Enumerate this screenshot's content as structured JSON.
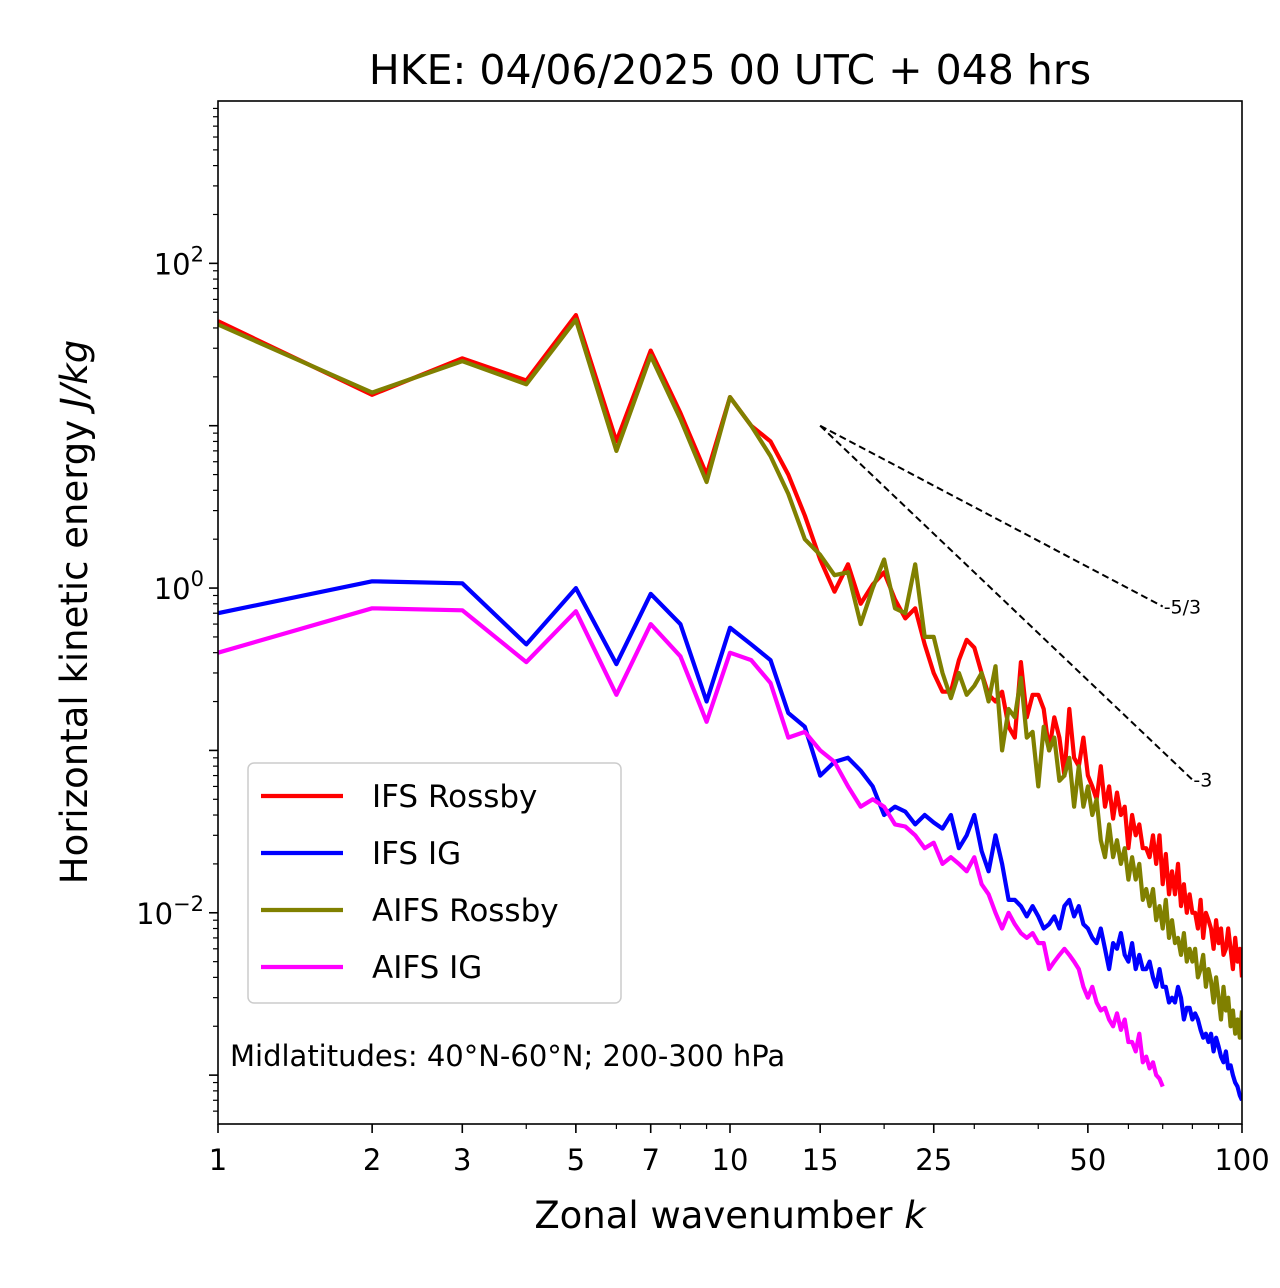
{
  "chart_data": {
    "type": "line",
    "title": "HKE: 04/06/2025 00 UTC + 048 hrs",
    "xlabel_main": "Zonal wavenumber ",
    "xlabel_var": "k",
    "ylabel_main": "Horizontal kinetic energy ",
    "ylabel_unit": "J/kg",
    "xscale": "log",
    "yscale": "log",
    "xlim": [
      1,
      100
    ],
    "ylim": [
      0.0005,
      1000
    ],
    "x_ticks": [
      1,
      2,
      3,
      5,
      7,
      10,
      15,
      25,
      50,
      100
    ],
    "x_tick_labels": [
      "1",
      "2",
      "3",
      "5",
      "7",
      "10",
      "15",
      "25",
      "50",
      "100"
    ],
    "y_ticks": [
      {
        "value": 100,
        "base": "10",
        "exp": "2"
      },
      {
        "value": 1,
        "base": "10",
        "exp": "0"
      },
      {
        "value": 0.01,
        "base": "10",
        "exp": "−2"
      }
    ],
    "annotation": "Midlatitudes: 40°N-60°N; 200-300 hPa",
    "legend_position": "lower-left",
    "grid": false,
    "reference_slopes": [
      {
        "label": "-5/3",
        "x": [
          15,
          70
        ],
        "y": [
          10,
          0.77
        ]
      },
      {
        "label": "-3",
        "x": [
          15,
          80
        ],
        "y": [
          10,
          0.066
        ]
      }
    ],
    "series": [
      {
        "name": "IFS Rossby",
        "color": "#ff0000",
        "x": [
          1,
          2,
          3,
          4,
          5,
          6,
          7,
          8,
          9,
          10,
          11,
          12,
          13,
          14,
          15,
          16,
          17,
          18,
          19,
          20,
          21,
          22,
          23,
          24,
          25,
          26,
          27,
          28,
          29,
          30,
          31,
          32,
          33,
          34,
          35,
          36,
          37,
          38,
          39,
          40,
          41,
          42,
          43,
          44,
          45,
          46,
          47,
          48,
          49,
          50,
          51,
          52,
          53,
          54,
          55,
          56,
          57,
          58,
          59,
          60,
          61,
          62,
          63,
          64,
          65,
          66,
          67,
          68,
          69,
          70,
          71,
          72,
          73,
          74,
          75,
          76,
          77,
          78,
          79,
          80,
          81,
          82,
          83,
          84,
          85,
          86,
          87,
          88,
          89,
          90,
          91,
          92,
          93,
          94,
          95,
          96,
          97,
          98,
          99,
          100
        ],
        "y": [
          44,
          15.5,
          26,
          19,
          48,
          8,
          29,
          12,
          5,
          15,
          10,
          8,
          5,
          2.8,
          1.5,
          0.95,
          1.4,
          0.8,
          1.05,
          1.25,
          0.85,
          0.65,
          0.75,
          0.45,
          0.3,
          0.23,
          0.23,
          0.36,
          0.48,
          0.43,
          0.3,
          0.22,
          0.2,
          0.23,
          0.14,
          0.12,
          0.35,
          0.16,
          0.22,
          0.22,
          0.18,
          0.1,
          0.16,
          0.12,
          0.07,
          0.18,
          0.09,
          0.08,
          0.12,
          0.07,
          0.06,
          0.05,
          0.08,
          0.045,
          0.06,
          0.038,
          0.055,
          0.04,
          0.045,
          0.025,
          0.04,
          0.03,
          0.035,
          0.025,
          0.025,
          0.022,
          0.03,
          0.02,
          0.03,
          0.015,
          0.023,
          0.013,
          0.018,
          0.013,
          0.02,
          0.011,
          0.015,
          0.01,
          0.013,
          0.01,
          0.01,
          0.008,
          0.012,
          0.007,
          0.01,
          0.009,
          0.008,
          0.006,
          0.009,
          0.0065,
          0.008,
          0.0055,
          0.006,
          0.008,
          0.006,
          0.0045,
          0.007,
          0.005,
          0.006,
          0.004
        ]
      },
      {
        "name": "IFS IG",
        "color": "#0000ff",
        "x": [
          1,
          2,
          3,
          4,
          5,
          6,
          7,
          8,
          9,
          10,
          11,
          12,
          13,
          14,
          15,
          16,
          17,
          18,
          19,
          20,
          21,
          22,
          23,
          24,
          25,
          26,
          27,
          28,
          29,
          30,
          31,
          32,
          33,
          34,
          35,
          36,
          37,
          38,
          39,
          40,
          41,
          42,
          43,
          44,
          45,
          46,
          47,
          48,
          49,
          50,
          51,
          52,
          53,
          54,
          55,
          56,
          57,
          58,
          59,
          60,
          61,
          62,
          63,
          64,
          65,
          66,
          67,
          68,
          69,
          70,
          71,
          72,
          73,
          74,
          75,
          76,
          77,
          78,
          79,
          80,
          81,
          82,
          83,
          84,
          85,
          86,
          87,
          88,
          89,
          90,
          91,
          92,
          93,
          94,
          95,
          96,
          97,
          98,
          99,
          100
        ],
        "y": [
          0.7,
          1.1,
          1.07,
          0.45,
          1.0,
          0.34,
          0.92,
          0.6,
          0.2,
          0.57,
          0.45,
          0.36,
          0.17,
          0.14,
          0.07,
          0.085,
          0.09,
          0.075,
          0.06,
          0.04,
          0.045,
          0.042,
          0.035,
          0.04,
          0.036,
          0.033,
          0.04,
          0.025,
          0.03,
          0.04,
          0.024,
          0.018,
          0.03,
          0.02,
          0.012,
          0.012,
          0.011,
          0.0095,
          0.011,
          0.0095,
          0.008,
          0.0085,
          0.0095,
          0.008,
          0.011,
          0.012,
          0.0095,
          0.011,
          0.0085,
          0.008,
          0.007,
          0.0065,
          0.008,
          0.006,
          0.0045,
          0.0065,
          0.006,
          0.0075,
          0.0055,
          0.005,
          0.0065,
          0.0045,
          0.0055,
          0.0045,
          0.0045,
          0.005,
          0.004,
          0.0035,
          0.0045,
          0.0035,
          0.0035,
          0.0028,
          0.003,
          0.0028,
          0.0035,
          0.003,
          0.0022,
          0.0026,
          0.0026,
          0.0022,
          0.0024,
          0.0022,
          0.0019,
          0.0017,
          0.0018,
          0.0016,
          0.0018,
          0.0014,
          0.0017,
          0.0015,
          0.0013,
          0.0012,
          0.0014,
          0.0011,
          0.00115,
          0.001,
          0.0009,
          0.00085,
          0.00075,
          0.0007
        ]
      },
      {
        "name": "AIFS Rossby",
        "color": "#808000",
        "x": [
          1,
          2,
          3,
          4,
          5,
          6,
          7,
          8,
          9,
          10,
          11,
          12,
          13,
          14,
          15,
          16,
          17,
          18,
          19,
          20,
          21,
          22,
          23,
          24,
          25,
          26,
          27,
          28,
          29,
          30,
          31,
          32,
          33,
          34,
          35,
          36,
          37,
          38,
          39,
          40,
          41,
          42,
          43,
          44,
          45,
          46,
          47,
          48,
          49,
          50,
          51,
          52,
          53,
          54,
          55,
          56,
          57,
          58,
          59,
          60,
          61,
          62,
          63,
          64,
          65,
          66,
          67,
          68,
          69,
          70,
          71,
          72,
          73,
          74,
          75,
          76,
          77,
          78,
          79,
          80,
          81,
          82,
          83,
          84,
          85,
          86,
          87,
          88,
          89,
          90,
          91,
          92,
          93,
          94,
          95,
          96,
          97,
          98,
          99,
          100
        ],
        "y": [
          42,
          16,
          25,
          18,
          45,
          7,
          27,
          11,
          4.5,
          15,
          10,
          6.5,
          3.8,
          2.0,
          1.6,
          1.2,
          1.25,
          0.6,
          1.0,
          1.5,
          0.75,
          0.7,
          1.4,
          0.5,
          0.5,
          0.3,
          0.21,
          0.3,
          0.22,
          0.25,
          0.3,
          0.2,
          0.33,
          0.1,
          0.18,
          0.16,
          0.28,
          0.12,
          0.13,
          0.06,
          0.14,
          0.1,
          0.12,
          0.065,
          0.07,
          0.09,
          0.045,
          0.08,
          0.045,
          0.06,
          0.04,
          0.05,
          0.028,
          0.022,
          0.035,
          0.022,
          0.028,
          0.02,
          0.025,
          0.016,
          0.022,
          0.016,
          0.02,
          0.012,
          0.014,
          0.011,
          0.014,
          0.009,
          0.011,
          0.008,
          0.012,
          0.007,
          0.009,
          0.0065,
          0.007,
          0.0055,
          0.0075,
          0.005,
          0.006,
          0.005,
          0.006,
          0.004,
          0.0045,
          0.0055,
          0.0035,
          0.0045,
          0.0038,
          0.0028,
          0.004,
          0.003,
          0.0022,
          0.0035,
          0.0025,
          0.003,
          0.002,
          0.0025,
          0.0018,
          0.0022,
          0.0017,
          0.0025
        ]
      },
      {
        "name": "AIFS IG",
        "color": "#ff00ff",
        "x": [
          1,
          2,
          3,
          4,
          5,
          6,
          7,
          8,
          9,
          10,
          11,
          12,
          13,
          14,
          15,
          16,
          17,
          18,
          19,
          20,
          21,
          22,
          23,
          24,
          25,
          26,
          27,
          28,
          29,
          30,
          31,
          32,
          33,
          34,
          35,
          36,
          37,
          38,
          39,
          40,
          41,
          42,
          43,
          44,
          45,
          46,
          47,
          48,
          49,
          50,
          51,
          52,
          53,
          54,
          55,
          56,
          57,
          58,
          59,
          60,
          61,
          62,
          63,
          64,
          65,
          66,
          67,
          68,
          69,
          70
        ],
        "y": [
          0.4,
          0.75,
          0.73,
          0.35,
          0.72,
          0.22,
          0.6,
          0.38,
          0.15,
          0.4,
          0.36,
          0.26,
          0.12,
          0.13,
          0.1,
          0.085,
          0.06,
          0.045,
          0.05,
          0.045,
          0.035,
          0.034,
          0.03,
          0.025,
          0.027,
          0.02,
          0.022,
          0.02,
          0.018,
          0.022,
          0.015,
          0.013,
          0.01,
          0.008,
          0.01,
          0.0085,
          0.0075,
          0.007,
          0.0075,
          0.0065,
          0.0065,
          0.0045,
          0.005,
          0.0055,
          0.006,
          0.0055,
          0.005,
          0.0045,
          0.0035,
          0.003,
          0.0035,
          0.0028,
          0.0025,
          0.0026,
          0.0022,
          0.002,
          0.0024,
          0.0019,
          0.0022,
          0.0016,
          0.0016,
          0.0014,
          0.0018,
          0.0012,
          0.0013,
          0.0011,
          0.0012,
          0.001,
          0.00095,
          0.00085
        ]
      }
    ]
  }
}
